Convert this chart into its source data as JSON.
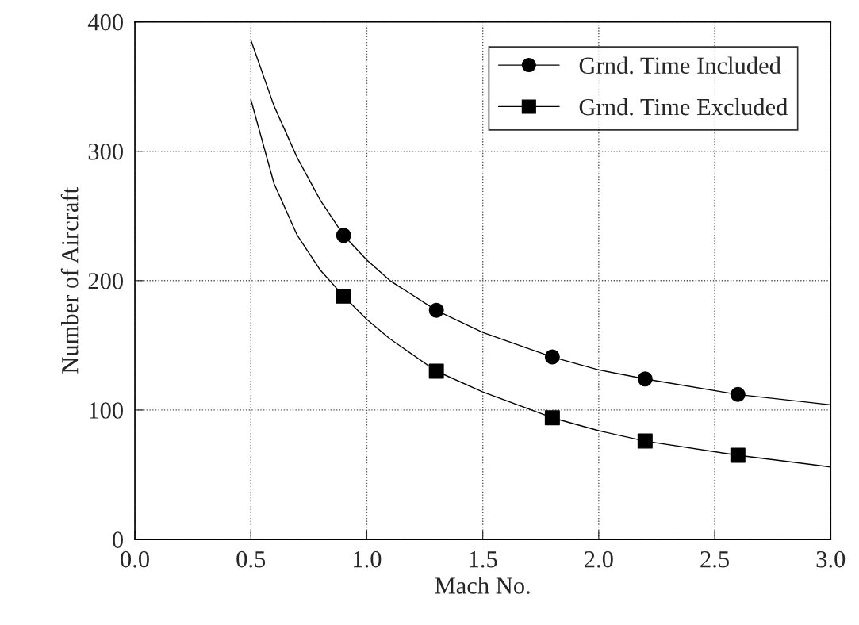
{
  "chart_data": {
    "type": "line",
    "xlabel": "Mach No.",
    "ylabel": "Number of Aircraft",
    "xlim": [
      0.0,
      3.0
    ],
    "xticks": [
      {
        "value": 0.0,
        "label": "0.0"
      },
      0.5,
      {
        "value": 1.0,
        "label": "1.0"
      },
      1.5,
      {
        "value": 2.0,
        "label": "2.0"
      },
      2.5,
      {
        "value": 3.0,
        "label": "3.0"
      }
    ],
    "ylim": [
      0,
      400
    ],
    "yticks": [
      0,
      100,
      200,
      300,
      400
    ],
    "grid": true,
    "legend": "top right",
    "series": [
      {
        "name": "Grnd. Time Included",
        "type": "scatter",
        "marker": "circle",
        "color": "#000000",
        "x": [
          0.9,
          1.3,
          1.8,
          2.2,
          2.6
        ],
        "values": [
          235,
          177,
          141,
          124,
          112
        ]
      },
      {
        "name": "Grnd. Time Excluded",
        "type": "scatter",
        "marker": "square",
        "color": "#000000",
        "x": [
          0.9,
          1.3,
          1.8,
          2.2,
          2.6
        ],
        "values": [
          188,
          130,
          94,
          76,
          65
        ]
      },
      {
        "marker": "none",
        "color": "#000000",
        "x": [
          0.5,
          0.6,
          0.7,
          0.8,
          0.9,
          1.0,
          1.1,
          1.3,
          1.5,
          1.8,
          2.0,
          2.2,
          2.6,
          3.0
        ],
        "values": [
          386,
          335,
          295,
          262,
          235,
          216,
          200,
          177,
          160,
          141,
          131,
          124,
          112,
          104
        ]
      },
      {
        "marker": "none",
        "color": "#000000",
        "x": [
          0.5,
          0.6,
          0.7,
          0.8,
          0.9,
          1.0,
          1.1,
          1.3,
          1.5,
          1.8,
          2.0,
          2.2,
          2.6,
          3.0
        ],
        "values": [
          340,
          275,
          235,
          208,
          188,
          170,
          155,
          130,
          114,
          94,
          84,
          76,
          65,
          56
        ]
      }
    ]
  }
}
